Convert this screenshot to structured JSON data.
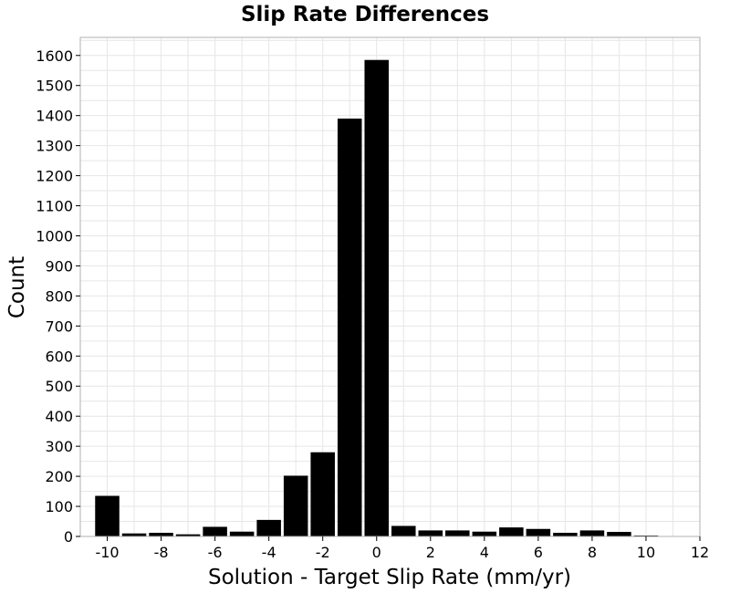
{
  "chart_data": {
    "type": "bar",
    "title": "Slip Rate Differences",
    "xlabel": "Solution - Target Slip Rate (mm/yr)",
    "ylabel": "Count",
    "xlim": [
      -11,
      12
    ],
    "ylim": [
      0,
      1660
    ],
    "x_ticks": [
      -10,
      -8,
      -6,
      -4,
      -2,
      0,
      2,
      4,
      6,
      8,
      10,
      12
    ],
    "y_ticks": [
      0,
      100,
      200,
      300,
      400,
      500,
      600,
      700,
      800,
      900,
      1000,
      1100,
      1200,
      1300,
      1400,
      1500,
      1600
    ],
    "bin_width": 1,
    "grid": true,
    "bar_color": "#000000",
    "bins": [
      {
        "x": -10,
        "count": 135
      },
      {
        "x": -9,
        "count": 10
      },
      {
        "x": -8,
        "count": 12
      },
      {
        "x": -7,
        "count": 7
      },
      {
        "x": -6,
        "count": 32
      },
      {
        "x": -5,
        "count": 16
      },
      {
        "x": -4,
        "count": 55
      },
      {
        "x": -3,
        "count": 202
      },
      {
        "x": -2,
        "count": 280
      },
      {
        "x": -1,
        "count": 1390
      },
      {
        "x": 0,
        "count": 1585
      },
      {
        "x": 1,
        "count": 35
      },
      {
        "x": 2,
        "count": 20
      },
      {
        "x": 3,
        "count": 20
      },
      {
        "x": 4,
        "count": 16
      },
      {
        "x": 5,
        "count": 30
      },
      {
        "x": 6,
        "count": 25
      },
      {
        "x": 7,
        "count": 12
      },
      {
        "x": 8,
        "count": 20
      },
      {
        "x": 9,
        "count": 15
      },
      {
        "x": 10,
        "count": 3
      }
    ]
  }
}
